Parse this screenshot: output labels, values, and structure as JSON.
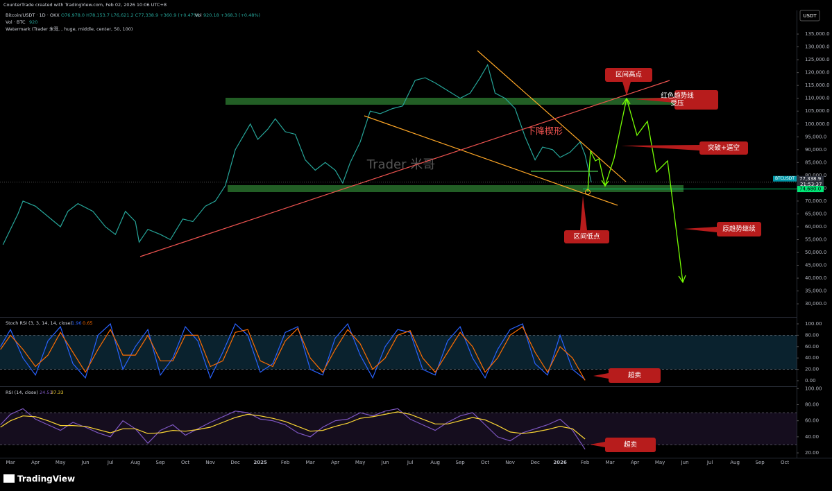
{
  "header": {
    "credit": "CounterTrade created with TradingView.com, Feb 02, 2026 10:06 UTC+8",
    "symbol": "Bitcoin/USDT · 1D · OKX",
    "ohlc": "O76,978.0 H78,153.7 L76,621.2 C77,338.9 +360.9 (+0.47%)",
    "vol_label": "Vol",
    "vol_values": "920.18 +368.3 (+0.48%)",
    "vol_line": "Vol · BTC",
    "vol_value": "920",
    "watermark_line": "Watermark (Trader 米哥, , huge, middle, center, 50, 100)",
    "currency": "USDT",
    "logo": "TradingView"
  },
  "annotations": [
    "区间高点",
    "红色趋势线",
    "受压",
    "突破+逼空",
    "区间低点",
    "原趋势继续",
    "超卖",
    "超卖"
  ],
  "pattern_label": "下降楔形",
  "chart_data": [
    {
      "type": "line",
      "watermark": "Trader 米哥",
      "color": "#26a69a",
      "x": [
        -0.3,
        0.3,
        0.5,
        1.0,
        1.5,
        2.0,
        2.3,
        2.7,
        3.3,
        3.8,
        4.2,
        4.6,
        5.0,
        5.15,
        5.5,
        6.0,
        6.4,
        6.9,
        7.3,
        7.8,
        8.2,
        8.6,
        9.0,
        9.3,
        9.6,
        9.9,
        10.3,
        10.6,
        11.0,
        11.4,
        11.8,
        12.2,
        12.6,
        13.0,
        13.3,
        13.6,
        14.0,
        14.4,
        14.8,
        15.3,
        15.7,
        16.2,
        16.6,
        17.0,
        17.5,
        18.0,
        18.4,
        18.8,
        19.1,
        19.4,
        19.8,
        20.2,
        20.6,
        21.0,
        21.3,
        21.7,
        22.0,
        22.4,
        22.8,
        23.0,
        23.25
      ],
      "values": [
        53000,
        65000,
        70000,
        68000,
        64000,
        60000,
        66000,
        69000,
        66000,
        60000,
        57000,
        66000,
        62000,
        54000,
        59000,
        57000,
        55000,
        63000,
        62000,
        68000,
        70000,
        76000,
        90000,
        95000,
        100000,
        94000,
        98000,
        102000,
        97000,
        96000,
        86000,
        82000,
        85000,
        82000,
        77000,
        85000,
        93000,
        105000,
        104000,
        106000,
        107000,
        117000,
        118000,
        116000,
        113000,
        110000,
        112000,
        118000,
        123000,
        112000,
        110000,
        106000,
        95000,
        86000,
        91000,
        90000,
        87000,
        89000,
        93000,
        88000,
        77338.9
      ],
      "xlim": [
        -0.42,
        31.47
      ],
      "xticks": [
        {
          "value": 0,
          "label": "Mar"
        },
        {
          "value": 1,
          "label": "Apr"
        },
        {
          "value": 2,
          "label": "May"
        },
        {
          "value": 3,
          "label": "Jun"
        },
        {
          "value": 4,
          "label": "Jul"
        },
        {
          "value": 5,
          "label": "Aug"
        },
        {
          "value": 6,
          "label": "Sep"
        },
        {
          "value": 7,
          "label": "Oct"
        },
        {
          "value": 8,
          "label": "Nov"
        },
        {
          "value": 9,
          "label": "Dec"
        },
        {
          "value": 10,
          "label": "2025"
        },
        {
          "value": 11,
          "label": "Feb"
        },
        {
          "value": 12,
          "label": "Mar"
        },
        {
          "value": 13,
          "label": "Apr"
        },
        {
          "value": 14,
          "label": "May"
        },
        {
          "value": 15,
          "label": "Jun"
        },
        {
          "value": 16,
          "label": "Jul"
        },
        {
          "value": 17,
          "label": "Aug"
        },
        {
          "value": 18,
          "label": "Sep"
        },
        {
          "value": 19,
          "label": "Oct"
        },
        {
          "value": 20,
          "label": "Nov"
        },
        {
          "value": 21,
          "label": "Dec"
        },
        {
          "value": 22,
          "label": "2026"
        },
        {
          "value": 23,
          "label": "Feb"
        },
        {
          "value": 24,
          "label": "Mar"
        },
        {
          "value": 25,
          "label": "Apr"
        },
        {
          "value": 26,
          "label": "May"
        },
        {
          "value": 27,
          "label": "Jun"
        },
        {
          "value": 28,
          "label": "Jul"
        },
        {
          "value": 29,
          "label": "Aug"
        },
        {
          "value": 30,
          "label": "Sep"
        },
        {
          "value": 31,
          "label": "Oct"
        }
      ],
      "ylim": [
        24900,
        144200
      ],
      "yticks": [
        {
          "value": 30000,
          "label": "30,000.0"
        },
        {
          "value": 35000,
          "label": "35,000.0"
        },
        {
          "value": 40000,
          "label": "40,000.0"
        },
        {
          "value": 45000,
          "label": "45,000.0"
        },
        {
          "value": 50000,
          "label": "50,000.0"
        },
        {
          "value": 55000,
          "label": "55,000.0"
        },
        {
          "value": 60000,
          "label": "60,000.0"
        },
        {
          "value": 65000,
          "label": "65,000.0"
        },
        {
          "value": 70000,
          "label": "70,000.0"
        },
        {
          "value": 75000,
          "label": "75,000.0"
        },
        {
          "value": 80000,
          "label": "80,000.0"
        },
        {
          "value": 85000,
          "label": "85,000.0"
        },
        {
          "value": 90000,
          "label": "90,000.0"
        },
        {
          "value": 95000,
          "label": "95,000.0"
        },
        {
          "value": 100000,
          "label": "100,000.0"
        },
        {
          "value": 105000,
          "label": "105,000.0"
        },
        {
          "value": 110000,
          "label": "110,000.0"
        },
        {
          "value": 115000,
          "label": "115,000.0"
        },
        {
          "value": 120000,
          "label": "120,000.0"
        },
        {
          "value": 125000,
          "label": "125,000.0"
        },
        {
          "value": 130000,
          "label": "130,000.0"
        },
        {
          "value": 135000,
          "label": "135,000.0"
        }
      ],
      "last_price": {
        "value": 77338.9,
        "label": "77,338.9"
      },
      "symbol_tag": "BTCUSDT",
      "countdown": "21:53:37",
      "low_level": {
        "value": 74680,
        "label": "74,680.0"
      }
    },
    {
      "type": "line",
      "title": "Stoch RSI (3, 3, 14, 14, close)",
      "readouts": [
        "1.96",
        "0.65"
      ],
      "band": [
        20,
        80
      ],
      "x": [
        -0.4,
        0,
        0.5,
        1,
        1.5,
        2,
        2.5,
        3,
        3.5,
        4,
        4.5,
        5,
        5.5,
        6,
        6.5,
        7,
        7.5,
        8,
        8.5,
        9,
        9.5,
        10,
        10.5,
        11,
        11.5,
        12,
        12.5,
        13,
        13.5,
        14,
        14.5,
        15,
        15.5,
        16,
        16.5,
        17,
        17.5,
        18,
        18.5,
        19,
        19.5,
        20,
        20.5,
        21,
        21.5,
        22,
        22.5,
        23
      ],
      "series": [
        {
          "color": "#2962ff",
          "values": [
            60,
            90,
            40,
            10,
            70,
            95,
            30,
            5,
            80,
            100,
            20,
            60,
            90,
            10,
            40,
            95,
            70,
            5,
            50,
            100,
            80,
            15,
            30,
            85,
            95,
            20,
            10,
            75,
            100,
            45,
            5,
            60,
            90,
            85,
            20,
            10,
            70,
            95,
            40,
            5,
            55,
            90,
            100,
            30,
            10,
            80,
            20,
            1.96
          ]
        },
        {
          "color": "#ff6d00",
          "values": [
            55,
            80,
            55,
            25,
            45,
            85,
            50,
            15,
            55,
            90,
            45,
            45,
            80,
            35,
            35,
            80,
            80,
            25,
            35,
            85,
            90,
            35,
            25,
            70,
            92,
            40,
            15,
            55,
            90,
            65,
            20,
            40,
            80,
            88,
            40,
            15,
            50,
            85,
            60,
            15,
            40,
            80,
            95,
            50,
            15,
            60,
            40,
            0.65
          ]
        }
      ],
      "ylim": [
        -9.8,
        111
      ],
      "yticks": [
        {
          "value": 0,
          "label": "0.00"
        },
        {
          "value": 20,
          "label": "20.00"
        },
        {
          "value": 40,
          "label": "40.00"
        },
        {
          "value": 60,
          "label": "60.00"
        },
        {
          "value": 80,
          "label": "80.00"
        },
        {
          "value": 100,
          "label": "100.00"
        }
      ]
    },
    {
      "type": "line",
      "title": "RSI (14, close)",
      "readouts": [
        "24.53",
        "37.33"
      ],
      "band": [
        30,
        70
      ],
      "x": [
        -0.4,
        0,
        0.5,
        1,
        1.5,
        2,
        2.5,
        3,
        3.5,
        4,
        4.5,
        5,
        5.5,
        6,
        6.5,
        7,
        7.5,
        8,
        8.5,
        9,
        9.5,
        10,
        10.5,
        11,
        11.5,
        12,
        12.5,
        13,
        13.5,
        14,
        14.5,
        15,
        15.5,
        16,
        16.5,
        17,
        17.5,
        18,
        18.5,
        19,
        19.5,
        20,
        20.5,
        21,
        21.5,
        22,
        22.5,
        23
      ],
      "series": [
        {
          "color": "#7e57c2",
          "values": [
            55,
            68,
            75,
            62,
            55,
            48,
            58,
            52,
            45,
            40,
            60,
            50,
            32,
            48,
            55,
            42,
            50,
            58,
            65,
            72,
            70,
            62,
            60,
            55,
            45,
            40,
            52,
            60,
            62,
            70,
            66,
            72,
            75,
            62,
            55,
            48,
            58,
            66,
            70,
            55,
            40,
            35,
            45,
            50,
            55,
            62,
            48,
            24.53
          ]
        },
        {
          "color": "#fdd835",
          "values": [
            52,
            60,
            66,
            65,
            60,
            54,
            54,
            53,
            49,
            45,
            50,
            50,
            44,
            45,
            48,
            47,
            49,
            52,
            58,
            64,
            68,
            66,
            63,
            59,
            53,
            47,
            48,
            53,
            57,
            63,
            65,
            68,
            71,
            68,
            62,
            56,
            56,
            60,
            64,
            61,
            54,
            46,
            44,
            46,
            49,
            53,
            50,
            37.33
          ]
        }
      ],
      "ylim": [
        14,
        102
      ],
      "yticks": [
        {
          "value": 20,
          "label": "20.00"
        },
        {
          "value": 40,
          "label": "40.00"
        },
        {
          "value": 60,
          "label": "60.00"
        },
        {
          "value": 80,
          "label": "80.00"
        },
        {
          "value": 100,
          "label": "100.00"
        }
      ]
    }
  ]
}
